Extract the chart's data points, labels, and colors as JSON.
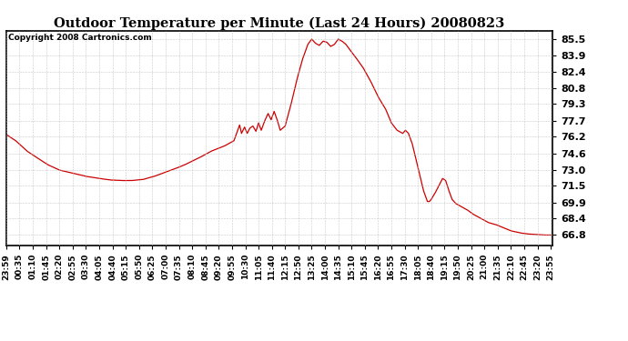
{
  "title": "Outdoor Temperature per Minute (Last 24 Hours) 20080823",
  "copyright_text": "Copyright 2008 Cartronics.com",
  "line_color": "#cc0000",
  "background_color": "#ffffff",
  "grid_color": "#bbbbbb",
  "yticks": [
    66.8,
    68.4,
    69.9,
    71.5,
    73.0,
    74.6,
    76.2,
    77.7,
    79.3,
    80.8,
    82.4,
    83.9,
    85.5
  ],
  "ylim": [
    65.8,
    86.3
  ],
  "xtick_labels": [
    "23:59",
    "00:35",
    "01:10",
    "01:45",
    "02:20",
    "02:55",
    "03:30",
    "04:05",
    "04:40",
    "05:15",
    "05:50",
    "06:25",
    "07:00",
    "07:35",
    "08:10",
    "08:45",
    "09:20",
    "09:55",
    "10:30",
    "11:05",
    "11:40",
    "12:15",
    "12:50",
    "13:25",
    "14:00",
    "14:35",
    "15:10",
    "15:45",
    "16:20",
    "16:55",
    "17:30",
    "18:05",
    "18:40",
    "19:15",
    "19:50",
    "20:25",
    "21:00",
    "21:35",
    "22:10",
    "22:45",
    "23:20",
    "23:55"
  ],
  "control_points": [
    [
      0,
      76.4
    ],
    [
      25,
      75.8
    ],
    [
      55,
      74.8
    ],
    [
      80,
      74.2
    ],
    [
      110,
      73.5
    ],
    [
      140,
      73.0
    ],
    [
      175,
      72.7
    ],
    [
      210,
      72.4
    ],
    [
      245,
      72.2
    ],
    [
      275,
      72.05
    ],
    [
      305,
      72.0
    ],
    [
      330,
      72.0
    ],
    [
      360,
      72.1
    ],
    [
      390,
      72.4
    ],
    [
      420,
      72.8
    ],
    [
      450,
      73.2
    ],
    [
      470,
      73.5
    ],
    [
      510,
      74.2
    ],
    [
      540,
      74.8
    ],
    [
      575,
      75.3
    ],
    [
      600,
      75.8
    ],
    [
      615,
      77.3
    ],
    [
      620,
      76.5
    ],
    [
      628,
      77.1
    ],
    [
      635,
      76.5
    ],
    [
      642,
      77.0
    ],
    [
      650,
      77.2
    ],
    [
      658,
      76.7
    ],
    [
      665,
      77.5
    ],
    [
      672,
      76.8
    ],
    [
      680,
      77.6
    ],
    [
      690,
      78.4
    ],
    [
      698,
      77.8
    ],
    [
      706,
      78.6
    ],
    [
      714,
      77.8
    ],
    [
      722,
      76.8
    ],
    [
      735,
      77.2
    ],
    [
      750,
      79.2
    ],
    [
      765,
      81.5
    ],
    [
      780,
      83.5
    ],
    [
      795,
      85.0
    ],
    [
      805,
      85.5
    ],
    [
      815,
      85.1
    ],
    [
      825,
      84.9
    ],
    [
      835,
      85.3
    ],
    [
      845,
      85.2
    ],
    [
      855,
      84.8
    ],
    [
      865,
      85.0
    ],
    [
      875,
      85.5
    ],
    [
      885,
      85.3
    ],
    [
      895,
      85.0
    ],
    [
      905,
      84.5
    ],
    [
      920,
      83.8
    ],
    [
      940,
      82.8
    ],
    [
      960,
      81.5
    ],
    [
      980,
      80.0
    ],
    [
      1000,
      78.8
    ],
    [
      1015,
      77.5
    ],
    [
      1030,
      76.8
    ],
    [
      1045,
      76.5
    ],
    [
      1052,
      76.8
    ],
    [
      1060,
      76.5
    ],
    [
      1070,
      75.5
    ],
    [
      1080,
      74.0
    ],
    [
      1090,
      72.5
    ],
    [
      1100,
      71.0
    ],
    [
      1110,
      70.0
    ],
    [
      1115,
      70.0
    ],
    [
      1120,
      70.2
    ],
    [
      1130,
      70.8
    ],
    [
      1140,
      71.5
    ],
    [
      1150,
      72.2
    ],
    [
      1158,
      72.0
    ],
    [
      1165,
      71.2
    ],
    [
      1175,
      70.2
    ],
    [
      1185,
      69.8
    ],
    [
      1200,
      69.5
    ],
    [
      1215,
      69.2
    ],
    [
      1230,
      68.8
    ],
    [
      1250,
      68.4
    ],
    [
      1270,
      68.0
    ],
    [
      1290,
      67.8
    ],
    [
      1310,
      67.5
    ],
    [
      1330,
      67.2
    ],
    [
      1355,
      67.0
    ],
    [
      1375,
      66.9
    ],
    [
      1400,
      66.85
    ],
    [
      1420,
      66.8
    ],
    [
      1440,
      66.8
    ]
  ]
}
